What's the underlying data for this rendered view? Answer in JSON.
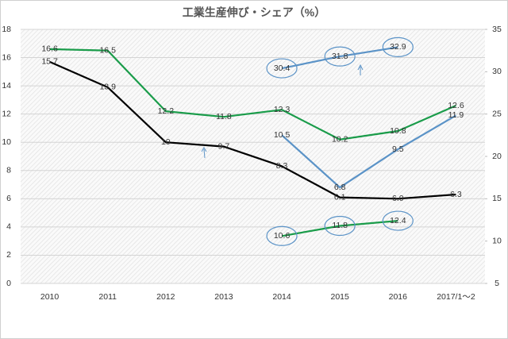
{
  "chart_data": {
    "type": "line",
    "title": "工業生産伸び・シェア（%）",
    "categories": [
      "2010",
      "2011",
      "2012",
      "2013",
      "2014",
      "2015",
      "2016",
      "2017/1～2"
    ],
    "ylim": [
      0,
      18
    ],
    "yticks": [
      0,
      2,
      4,
      6,
      8,
      10,
      12,
      14,
      16,
      18
    ],
    "y2lim": [
      5,
      35
    ],
    "y2ticks": [
      5,
      10,
      15,
      20,
      25,
      30,
      35
    ],
    "grid": true,
    "series": [
      {
        "color": "#1a9c4a",
        "values": [
          16.6,
          16.5,
          12.2,
          11.8,
          12.3,
          10.2,
          10.8,
          12.6
        ]
      },
      {
        "color": "#000000",
        "values": [
          15.7,
          13.9,
          10,
          9.7,
          8.3,
          6.1,
          6.0,
          6.3
        ],
        "value_labels": [
          "15.7",
          "13.9",
          "10",
          "9.7",
          "8.3",
          "6.1",
          "6.0",
          "6.3"
        ]
      },
      {
        "color": "#5b93c7",
        "values": [
          null,
          null,
          null,
          null,
          10.5,
          6.8,
          9.5,
          11.9
        ]
      },
      {
        "color": "#5b93c7",
        "axis": "y2",
        "values": [
          null,
          null,
          null,
          null,
          30.4,
          31.8,
          32.9,
          null
        ]
      },
      {
        "color": "#1a9c4a",
        "axis": "y2",
        "values": [
          null,
          null,
          null,
          null,
          10.6,
          11.8,
          12.4,
          null
        ]
      }
    ]
  }
}
